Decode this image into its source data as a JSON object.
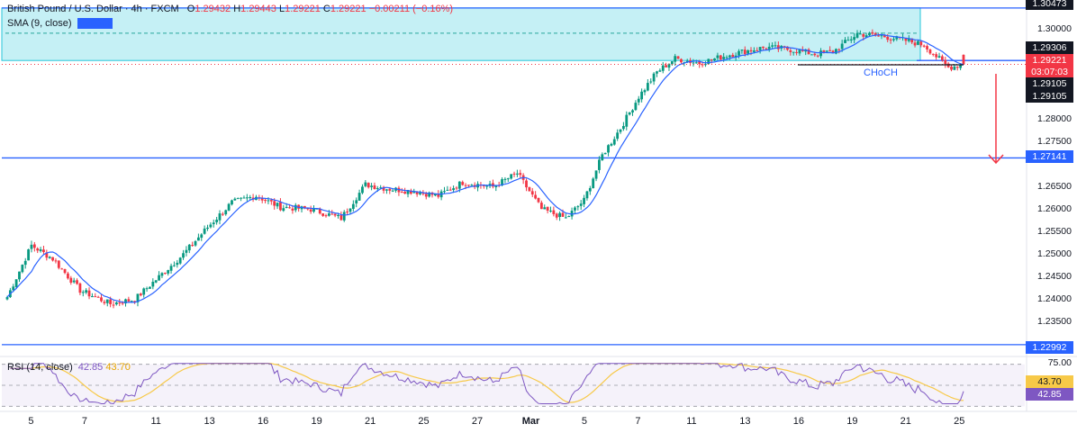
{
  "legend": {
    "symbol": "British Pound / U.S. Dollar · 4h · FXCM",
    "open_label": "O",
    "open": "1.29432",
    "high_label": "H",
    "high": "1.29443",
    "low_label": "L",
    "low": "1.29221",
    "close_label": "C",
    "close": "1.29221",
    "change": "−0.00211 (−0.16%)",
    "sma_label": "SMA (9, close)",
    "sma_value": "1.29306",
    "rsi_label": "RSI (14, close)",
    "rsi_value": "42.85",
    "rsi_ma": "43.70"
  },
  "annotation": {
    "choch": "CHoCH"
  },
  "price_axis": {
    "ticks": [
      "1.30000",
      "1.28000",
      "1.27500",
      "1.26500",
      "1.26000",
      "1.25500",
      "1.25000",
      "1.24500",
      "1.24000",
      "1.23500"
    ],
    "tick_values": [
      1.3,
      1.28,
      1.275,
      1.265,
      1.26,
      1.255,
      1.25,
      1.245,
      1.24,
      1.235
    ],
    "labels": {
      "resistance_top": "1.30473",
      "sma": "1.29306",
      "current_price": "1.29221",
      "countdown": "03:07:03",
      "low1": "1.29105",
      "low2": "1.29105",
      "level_mid": "1.27141",
      "level_low": "1.22992"
    }
  },
  "rsi_axis": {
    "ticks": [
      "75.00"
    ],
    "value_label": "42.85",
    "ma_label": "43.70"
  },
  "time_axis": [
    "5",
    "7",
    "11",
    "13",
    "16",
    "19",
    "21",
    "25",
    "27",
    "Mar",
    "5",
    "7",
    "11",
    "13",
    "16",
    "19",
    "21",
    "25"
  ],
  "colors": {
    "up": "#089981",
    "down": "#f23645",
    "sma": "#2962ff",
    "zone_fill": "#b2ebf2",
    "level_line": "#2962ff",
    "rsi_line": "#7e57c2",
    "rsi_ma": "#f7c948",
    "arrow": "#f23645"
  },
  "chart_data": {
    "type": "candlestick",
    "title": "British Pound / U.S. Dollar · 4h · FXCM",
    "price_range": [
      1.2275,
      1.3065
    ],
    "horizontal_levels": [
      1.30473,
      1.29306,
      1.27141,
      1.22992
    ],
    "resistance_zone": [
      1.29306,
      1.30473
    ],
    "anchor_closes": [
      [
        0,
        1.2405
      ],
      [
        8,
        1.252
      ],
      [
        15,
        1.249
      ],
      [
        24,
        1.242
      ],
      [
        34,
        1.239
      ],
      [
        42,
        1.24
      ],
      [
        50,
        1.245
      ],
      [
        58,
        1.25
      ],
      [
        66,
        1.256
      ],
      [
        74,
        1.2615
      ],
      [
        82,
        1.263
      ],
      [
        90,
        1.2605
      ],
      [
        100,
        1.26
      ],
      [
        110,
        1.258
      ],
      [
        118,
        1.2655
      ],
      [
        126,
        1.2645
      ],
      [
        134,
        1.264
      ],
      [
        142,
        1.263
      ],
      [
        150,
        1.266
      ],
      [
        160,
        1.265
      ],
      [
        168,
        1.268
      ],
      [
        176,
        1.26
      ],
      [
        184,
        1.258
      ],
      [
        190,
        1.262
      ],
      [
        196,
        1.272
      ],
      [
        202,
        1.278
      ],
      [
        208,
        1.285
      ],
      [
        214,
        1.2905
      ],
      [
        220,
        1.2935
      ],
      [
        228,
        1.2925
      ],
      [
        236,
        1.294
      ],
      [
        242,
        1.295
      ],
      [
        250,
        1.296
      ],
      [
        258,
        1.2955
      ],
      [
        266,
        1.2945
      ],
      [
        272,
        1.295
      ],
      [
        280,
        1.299
      ],
      [
        288,
        1.2985
      ],
      [
        296,
        1.2975
      ],
      [
        302,
        1.2965
      ],
      [
        310,
        1.2915
      ],
      [
        315,
        1.2922
      ]
    ],
    "sma_period": 9,
    "last_ohlc": {
      "open": 1.29432,
      "high": 1.29443,
      "low": 1.29221,
      "close": 1.29221
    },
    "rsi": {
      "period": 14,
      "value": 42.85,
      "ma": 43.7,
      "levels": [
        75,
        50,
        30
      ]
    },
    "x_tick_labels": [
      "5",
      "7",
      "11",
      "13",
      "16",
      "19",
      "21",
      "25",
      "27",
      "Mar",
      "5",
      "7",
      "11",
      "13",
      "16",
      "19",
      "21",
      "25"
    ],
    "x_tick_index": [
      8,
      26,
      50,
      68,
      86,
      104,
      122,
      140,
      158,
      176,
      194,
      212,
      230,
      248,
      266,
      284,
      302,
      320
    ]
  }
}
